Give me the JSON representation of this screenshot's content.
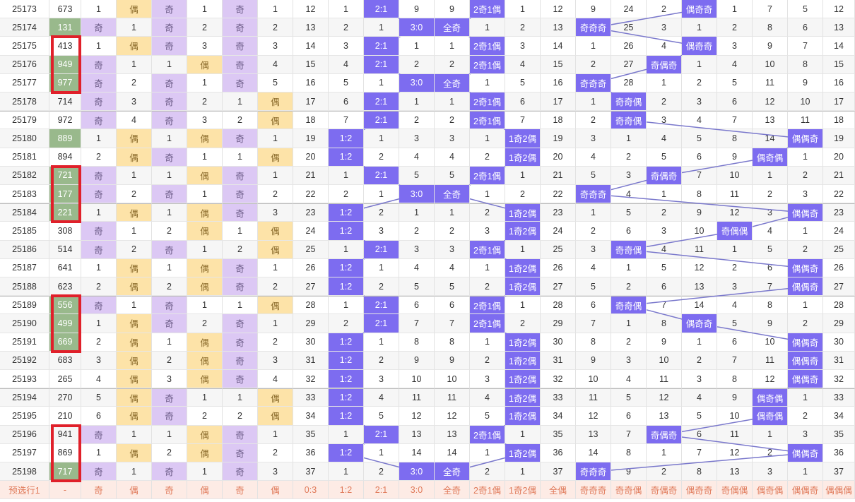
{
  "rows": [
    [
      "25173",
      "673",
      "1",
      "偶",
      "奇",
      "1",
      "奇",
      "1",
      "12",
      "1",
      "2:1",
      "9",
      "9",
      "2奇1偶",
      "1",
      "12",
      "9",
      "24",
      "2",
      "偶奇奇",
      "1",
      "7",
      "5",
      "12"
    ],
    [
      "25174",
      "131",
      "奇",
      "1",
      "奇",
      "2",
      "奇",
      "2",
      "13",
      "2",
      "1",
      "3:0",
      "全奇",
      "1",
      "2",
      "13",
      "奇奇奇",
      "25",
      "3",
      "1",
      "2",
      "8",
      "6",
      "13"
    ],
    [
      "25175",
      "413",
      "1",
      "偶",
      "奇",
      "3",
      "奇",
      "3",
      "14",
      "3",
      "2:1",
      "1",
      "1",
      "2奇1偶",
      "3",
      "14",
      "1",
      "26",
      "4",
      "偶奇奇",
      "3",
      "9",
      "7",
      "14"
    ],
    [
      "25176",
      "949",
      "奇",
      "1",
      "1",
      "偶",
      "奇",
      "4",
      "15",
      "4",
      "2:1",
      "2",
      "2",
      "2奇1偶",
      "4",
      "15",
      "2",
      "27",
      "奇偶奇",
      "1",
      "4",
      "10",
      "8",
      "15"
    ],
    [
      "25177",
      "977",
      "奇",
      "2",
      "奇",
      "1",
      "奇",
      "5",
      "16",
      "5",
      "1",
      "3:0",
      "全奇",
      "1",
      "5",
      "16",
      "奇奇奇",
      "28",
      "1",
      "2",
      "5",
      "11",
      "9",
      "16"
    ],
    [
      "25178",
      "714",
      "奇",
      "3",
      "奇",
      "2",
      "1",
      "偶",
      "17",
      "6",
      "2:1",
      "1",
      "1",
      "2奇1偶",
      "6",
      "17",
      "1",
      "奇奇偶",
      "2",
      "3",
      "6",
      "12",
      "10",
      "17"
    ],
    [
      "25179",
      "972",
      "奇",
      "4",
      "奇",
      "3",
      "2",
      "偶",
      "18",
      "7",
      "2:1",
      "2",
      "2",
      "2奇1偶",
      "7",
      "18",
      "2",
      "奇奇偶",
      "3",
      "4",
      "7",
      "13",
      "11",
      "18"
    ],
    [
      "25180",
      "889",
      "1",
      "偶",
      "1",
      "偶",
      "奇",
      "1",
      "19",
      "1:2",
      "1",
      "3",
      "3",
      "1",
      "1奇2偶",
      "19",
      "3",
      "1",
      "4",
      "5",
      "8",
      "14",
      "偶偶奇",
      "19"
    ],
    [
      "25181",
      "894",
      "2",
      "偶",
      "奇",
      "1",
      "1",
      "偶",
      "20",
      "1:2",
      "2",
      "4",
      "4",
      "2",
      "1奇2偶",
      "20",
      "4",
      "2",
      "5",
      "6",
      "9",
      "偶奇偶",
      "1",
      "20"
    ],
    [
      "25182",
      "721",
      "奇",
      "1",
      "1",
      "偶",
      "奇",
      "1",
      "21",
      "1",
      "2:1",
      "5",
      "5",
      "2奇1偶",
      "1",
      "21",
      "5",
      "3",
      "奇偶奇",
      "7",
      "10",
      "1",
      "2",
      "21"
    ],
    [
      "25183",
      "177",
      "奇",
      "2",
      "奇",
      "1",
      "奇",
      "2",
      "22",
      "2",
      "1",
      "3:0",
      "全奇",
      "1",
      "2",
      "22",
      "奇奇奇",
      "4",
      "1",
      "8",
      "11",
      "2",
      "3",
      "22"
    ],
    [
      "25184",
      "221",
      "1",
      "偶",
      "1",
      "偶",
      "奇",
      "3",
      "23",
      "1:2",
      "2",
      "1",
      "1",
      "2",
      "1奇2偶",
      "23",
      "1",
      "5",
      "2",
      "9",
      "12",
      "3",
      "偶偶奇",
      "23"
    ],
    [
      "25185",
      "308",
      "奇",
      "1",
      "2",
      "偶",
      "1",
      "偶",
      "24",
      "1:2",
      "3",
      "2",
      "2",
      "3",
      "1奇2偶",
      "24",
      "2",
      "6",
      "3",
      "10",
      "奇偶偶",
      "4",
      "1",
      "24"
    ],
    [
      "25186",
      "514",
      "奇",
      "2",
      "奇",
      "1",
      "2",
      "偶",
      "25",
      "1",
      "2:1",
      "3",
      "3",
      "2奇1偶",
      "1",
      "25",
      "3",
      "奇奇偶",
      "4",
      "11",
      "1",
      "5",
      "2",
      "25"
    ],
    [
      "25187",
      "641",
      "1",
      "偶",
      "1",
      "偶",
      "奇",
      "1",
      "26",
      "1:2",
      "1",
      "4",
      "4",
      "1",
      "1奇2偶",
      "26",
      "4",
      "1",
      "5",
      "12",
      "2",
      "6",
      "偶偶奇",
      "26"
    ],
    [
      "25188",
      "623",
      "2",
      "偶",
      "2",
      "偶",
      "奇",
      "2",
      "27",
      "1:2",
      "2",
      "5",
      "5",
      "2",
      "1奇2偶",
      "27",
      "5",
      "2",
      "6",
      "13",
      "3",
      "7",
      "偶偶奇",
      "27"
    ],
    [
      "25189",
      "556",
      "奇",
      "1",
      "奇",
      "1",
      "1",
      "偶",
      "28",
      "1",
      "2:1",
      "6",
      "6",
      "2奇1偶",
      "1",
      "28",
      "6",
      "奇奇偶",
      "7",
      "14",
      "4",
      "8",
      "1",
      "28"
    ],
    [
      "25190",
      "499",
      "1",
      "偶",
      "奇",
      "2",
      "奇",
      "1",
      "29",
      "2",
      "2:1",
      "7",
      "7",
      "2奇1偶",
      "2",
      "29",
      "7",
      "1",
      "8",
      "偶奇奇",
      "5",
      "9",
      "2",
      "29"
    ],
    [
      "25191",
      "669",
      "2",
      "偶",
      "1",
      "偶",
      "奇",
      "2",
      "30",
      "1:2",
      "1",
      "8",
      "8",
      "1",
      "1奇2偶",
      "30",
      "8",
      "2",
      "9",
      "1",
      "6",
      "10",
      "偶偶奇",
      "30"
    ],
    [
      "25192",
      "683",
      "3",
      "偶",
      "2",
      "偶",
      "奇",
      "3",
      "31",
      "1:2",
      "2",
      "9",
      "9",
      "2",
      "1奇2偶",
      "31",
      "9",
      "3",
      "10",
      "2",
      "7",
      "11",
      "偶偶奇",
      "31"
    ],
    [
      "25193",
      "265",
      "4",
      "偶",
      "3",
      "偶",
      "奇",
      "4",
      "32",
      "1:2",
      "3",
      "10",
      "10",
      "3",
      "1奇2偶",
      "32",
      "10",
      "4",
      "11",
      "3",
      "8",
      "12",
      "偶偶奇",
      "32"
    ],
    [
      "25194",
      "270",
      "5",
      "偶",
      "奇",
      "1",
      "1",
      "偶",
      "33",
      "1:2",
      "4",
      "11",
      "11",
      "4",
      "1奇2偶",
      "33",
      "11",
      "5",
      "12",
      "4",
      "9",
      "偶奇偶",
      "1",
      "33"
    ],
    [
      "25195",
      "210",
      "6",
      "偶",
      "奇",
      "2",
      "2",
      "偶",
      "34",
      "1:2",
      "5",
      "12",
      "12",
      "5",
      "1奇2偶",
      "34",
      "12",
      "6",
      "13",
      "5",
      "10",
      "偶奇偶",
      "2",
      "34"
    ],
    [
      "25196",
      "941",
      "奇",
      "1",
      "1",
      "偶",
      "奇",
      "1",
      "35",
      "1",
      "2:1",
      "13",
      "13",
      "2奇1偶",
      "1",
      "35",
      "13",
      "7",
      "奇偶奇",
      "6",
      "11",
      "1",
      "3",
      "35"
    ],
    [
      "25197",
      "869",
      "1",
      "偶",
      "2",
      "偶",
      "奇",
      "2",
      "36",
      "1:2",
      "1",
      "14",
      "14",
      "1",
      "1奇2偶",
      "36",
      "14",
      "8",
      "1",
      "7",
      "12",
      "2",
      "偶偶奇",
      "36"
    ],
    [
      "25198",
      "717",
      "奇",
      "1",
      "奇",
      "1",
      "奇",
      "3",
      "37",
      "1",
      "2",
      "3:0",
      "全奇",
      "2",
      "1",
      "37",
      "奇奇奇",
      "9",
      "2",
      "8",
      "13",
      "3",
      "1",
      "37"
    ]
  ],
  "footer": [
    "预选行1",
    "-",
    "奇",
    "偶",
    "奇",
    "偶",
    "奇",
    "偶",
    "0:3",
    "1:2",
    "2:1",
    "3:0",
    "全奇",
    "2奇1偶",
    "1奇2偶",
    "全偶",
    "奇奇奇",
    "奇奇偶",
    "奇偶奇",
    "偶奇奇",
    "奇偶偶",
    "偶奇偶",
    "偶偶奇",
    "偶偶偶"
  ],
  "green_rows": [
    1,
    3,
    4,
    7,
    9,
    10,
    11,
    16,
    17,
    18,
    25
  ],
  "red_boxes": [
    [
      2,
      4
    ],
    [
      9,
      11
    ],
    [
      16,
      18
    ],
    [
      23,
      25
    ]
  ]
}
